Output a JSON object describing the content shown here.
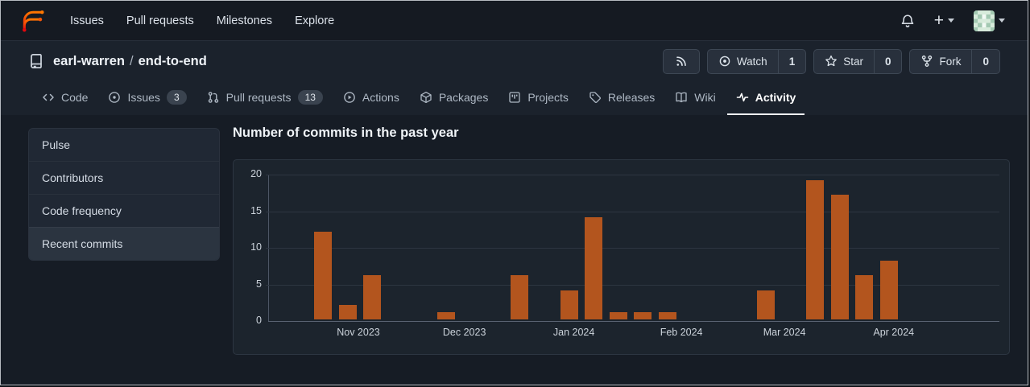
{
  "navbar": {
    "links": [
      "Issues",
      "Pull requests",
      "Milestones",
      "Explore"
    ],
    "icons": {
      "logo": "forgejo-logo",
      "notifications": "bell-icon",
      "create_new": "plus-icon",
      "user_menu": "avatar-identicon"
    }
  },
  "repo_header": {
    "repo_icon": "repo-book-icon",
    "owner": "earl-warren",
    "separator": "/",
    "name": "end-to-end",
    "buttons": {
      "rss": {
        "icon": "rss-icon"
      },
      "watch": {
        "icon": "eye-icon",
        "label": "Watch",
        "count": "1"
      },
      "star": {
        "icon": "star-icon",
        "label": "Star",
        "count": "0"
      },
      "fork": {
        "icon": "fork-icon",
        "label": "Fork",
        "count": "0"
      }
    }
  },
  "tabs": [
    {
      "label": "Code",
      "icon": "code-icon"
    },
    {
      "label": "Issues",
      "icon": "issue-opened-icon",
      "badge": "3"
    },
    {
      "label": "Pull requests",
      "icon": "git-pull-request-icon",
      "badge": "13"
    },
    {
      "label": "Actions",
      "icon": "play-circle-icon"
    },
    {
      "label": "Packages",
      "icon": "package-icon"
    },
    {
      "label": "Projects",
      "icon": "project-board-icon"
    },
    {
      "label": "Releases",
      "icon": "tag-icon"
    },
    {
      "label": "Wiki",
      "icon": "book-open-icon"
    },
    {
      "label": "Activity",
      "icon": "pulse-icon",
      "active": true
    }
  ],
  "sidebar": {
    "items": [
      {
        "label": "Pulse"
      },
      {
        "label": "Contributors"
      },
      {
        "label": "Code frequency"
      },
      {
        "label": "Recent commits",
        "active": true
      }
    ]
  },
  "main": {
    "heading": "Number of commits in the past year"
  },
  "chart_data": {
    "type": "bar",
    "title": "Number of commits in the past year",
    "bar_color": "#b3551e",
    "ylim": [
      0,
      20
    ],
    "yticks": [
      0,
      5,
      10,
      15,
      20
    ],
    "grid": true,
    "x_unit": "week",
    "bars": [
      {
        "week": 0,
        "value": 12
      },
      {
        "week": 1,
        "value": 2
      },
      {
        "week": 2,
        "value": 6
      },
      {
        "week": 5,
        "value": 1
      },
      {
        "week": 8,
        "value": 6
      },
      {
        "week": 10,
        "value": 4
      },
      {
        "week": 11,
        "value": 14
      },
      {
        "week": 12,
        "value": 1
      },
      {
        "week": 13,
        "value": 1
      },
      {
        "week": 14,
        "value": 1
      },
      {
        "week": 18,
        "value": 4
      },
      {
        "week": 20,
        "value": 19
      },
      {
        "week": 21,
        "value": 17
      },
      {
        "week": 22,
        "value": 6
      },
      {
        "week": 23,
        "value": 8
      }
    ],
    "month_labels": [
      {
        "label": "Nov 2023",
        "week": 1.8
      },
      {
        "label": "Dec 2023",
        "week": 6.11
      },
      {
        "label": "Jan 2024",
        "week": 10.56
      },
      {
        "label": "Feb 2024",
        "week": 14.93
      },
      {
        "label": "Mar 2024",
        "week": 19.12
      },
      {
        "label": "Apr 2024",
        "week": 23.56
      }
    ]
  }
}
